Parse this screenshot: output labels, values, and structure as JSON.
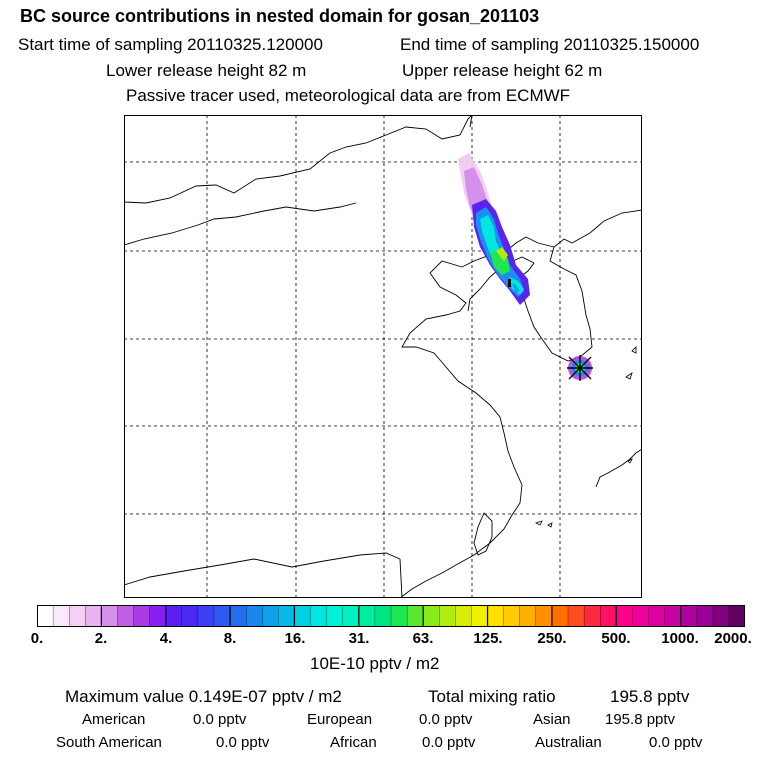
{
  "header": {
    "title": "BC  source contributions in nested domain for gosan_201103",
    "start_time": "Start time of sampling 20110325.120000",
    "end_time": "End time of sampling 20110325.150000",
    "lower_release": "Lower release height   82 m",
    "upper_release": "Upper release height   62 m",
    "tracer_note": "Passive tracer used, meteorological data are from ECMWF"
  },
  "colorbar": {
    "ticks": [
      "0.",
      "2.",
      "4.",
      "8.",
      "16.",
      "31.",
      "63.",
      "125.",
      "250.",
      "500.",
      "1000.",
      "2000."
    ],
    "unit": "10E-10 pptv / m2",
    "colors": [
      "#ffffff",
      "#fbe9fb",
      "#f4d0f6",
      "#e9b2f0",
      "#d590ec",
      "#c05ee6",
      "#a83ae6",
      "#8a1ef0",
      "#5a1ef0",
      "#4a2af2",
      "#3e40f4",
      "#2c5cf2",
      "#2270f0",
      "#1888ee",
      "#10a0ea",
      "#08b8e6",
      "#00d0e6",
      "#00e6e0",
      "#00f0d6",
      "#00f0c0",
      "#00eca0",
      "#00e680",
      "#20e650",
      "#58e830",
      "#88ea18",
      "#b0ec10",
      "#d8ee08",
      "#f0f000",
      "#ffe000",
      "#ffcc00",
      "#ffb000",
      "#ff9000",
      "#ff7000",
      "#ff4c20",
      "#ff2a40",
      "#ff1060",
      "#ff0088",
      "#f00098",
      "#e000a0",
      "#c800a8",
      "#b000a0",
      "#980098",
      "#800080",
      "#600060"
    ]
  },
  "footer": {
    "max_value": "Maximum value  0.149E-07 pptv / m2",
    "total_label": "Total mixing ratio",
    "total_value": "195.8 pptv",
    "regions": [
      {
        "name": "American",
        "value": "0.0 pptv"
      },
      {
        "name": "European",
        "value": "0.0 pptv"
      },
      {
        "name": "Asian",
        "value": "195.8 pptv"
      },
      {
        "name": "South American",
        "value": "0.0 pptv"
      },
      {
        "name": "African",
        "value": "0.0 pptv"
      },
      {
        "name": "Australian",
        "value": "0.0 pptv"
      }
    ]
  }
}
